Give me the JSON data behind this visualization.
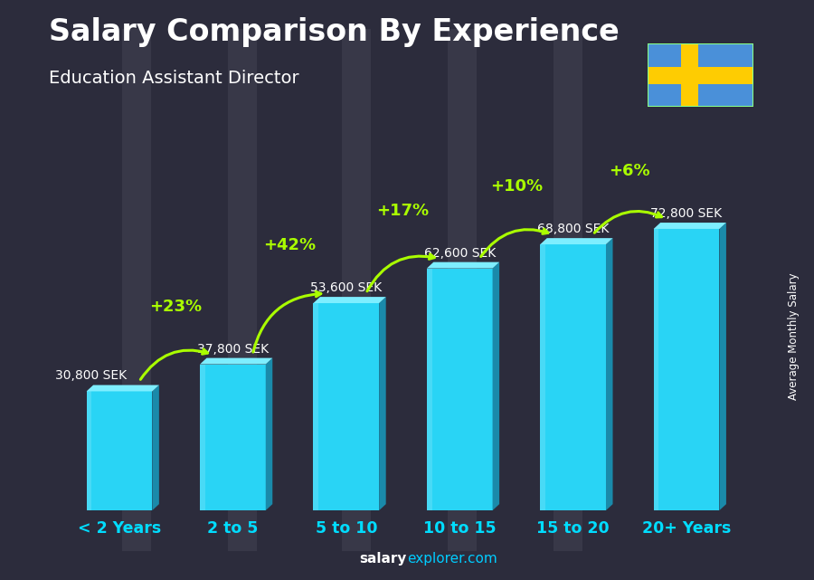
{
  "title": "Salary Comparison By Experience",
  "subtitle": "Education Assistant Director",
  "categories": [
    "< 2 Years",
    "2 to 5",
    "5 to 10",
    "10 to 15",
    "15 to 20",
    "20+ Years"
  ],
  "values": [
    30800,
    37800,
    53600,
    62600,
    68800,
    72800
  ],
  "salary_labels": [
    "30,800 SEK",
    "37,800 SEK",
    "53,600 SEK",
    "62,600 SEK",
    "68,800 SEK",
    "72,800 SEK"
  ],
  "pct_labels": [
    null,
    "+23%",
    "+42%",
    "+17%",
    "+10%",
    "+6%"
  ],
  "bar_face_color": "#29d4f5",
  "bar_right_color": "#1a8aaa",
  "bar_top_color": "#7eeeff",
  "bar_edge_color": "#55eeff",
  "bg_color": "#3a3a4a",
  "overlay_color": "#1a1a2e",
  "title_color": "#ffffff",
  "subtitle_color": "#ffffff",
  "salary_label_color": "#ffffff",
  "pct_color": "#aaff00",
  "xticklabel_color": "#00ddff",
  "footer_salary_color": "#ffffff",
  "footer_explorer_color": "#00ccff",
  "ylabel_color": "#ffffff",
  "ylabel_text": "Average Monthly Salary",
  "footer_salary": "salary",
  "footer_rest": "explorer.com",
  "ylim": [
    0,
    90000
  ],
  "fig_width": 9.0,
  "fig_height": 6.41,
  "flag_blue": "#4a90d9",
  "flag_yellow": "#FECC02"
}
